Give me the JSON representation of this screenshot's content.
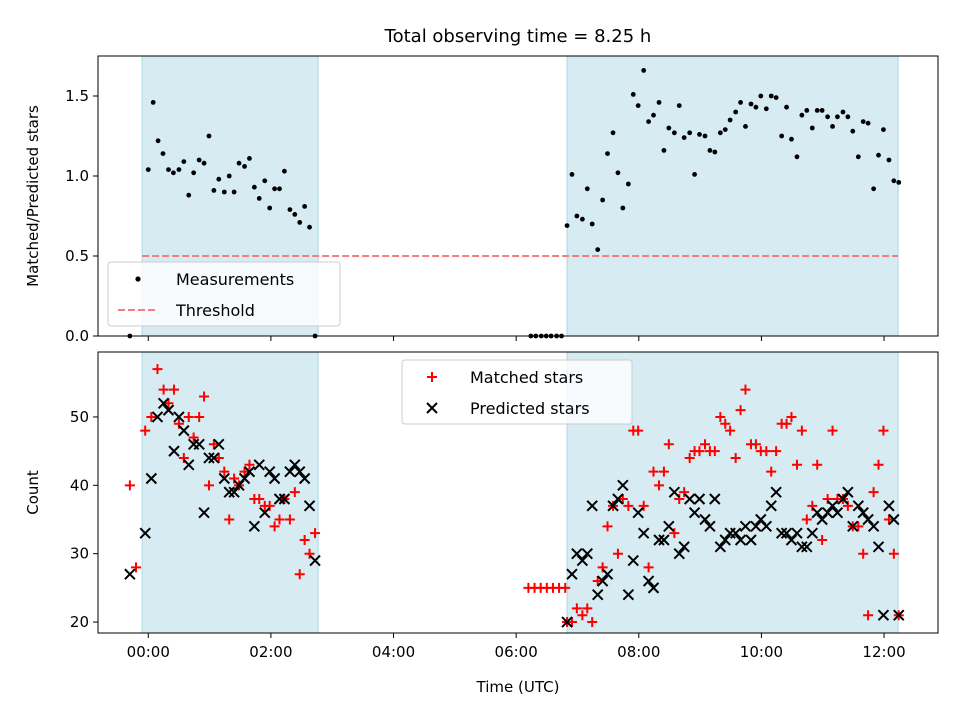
{
  "chart_data": [
    {
      "type": "scatter",
      "title": "Total observing time = 8.25 h",
      "xlabel": "",
      "ylabel": "Matched/Predicted stars",
      "xlim": [
        -0.82,
        12.88
      ],
      "ylim": [
        0,
        1.75
      ],
      "yticks": [
        0.0,
        0.5,
        1.0,
        1.5
      ],
      "ytick_labels": [
        "0.0",
        "0.5",
        "1.0",
        "1.5"
      ],
      "xticks": [
        0,
        2,
        4,
        6,
        8,
        10,
        12
      ],
      "shaded_intervals": [
        [
          -0.1,
          2.77
        ],
        [
          6.83,
          12.23
        ]
      ],
      "legend": {
        "placement": "lower-left",
        "entries": [
          "Measurements",
          "Threshold"
        ]
      },
      "threshold": {
        "name": "Threshold",
        "value": 0.5,
        "x_range": [
          -0.1,
          12.23
        ],
        "color": "#f08080"
      },
      "series": [
        {
          "name": "Measurements",
          "color": "#000000",
          "x": [
            -0.3,
            0.0,
            0.08,
            0.16,
            0.24,
            0.33,
            0.41,
            0.5,
            0.58,
            0.66,
            0.74,
            0.83,
            0.91,
            0.99,
            1.07,
            1.15,
            1.24,
            1.32,
            1.4,
            1.48,
            1.57,
            1.65,
            1.73,
            1.81,
            1.9,
            1.98,
            2.06,
            2.14,
            2.22,
            2.31,
            2.39,
            2.47,
            2.55,
            2.63,
            2.72,
            6.24,
            6.32,
            6.41,
            6.49,
            6.57,
            6.66,
            6.74,
            6.83,
            6.91,
            6.99,
            7.08,
            7.16,
            7.24,
            7.33,
            7.41,
            7.49,
            7.58,
            7.66,
            7.74,
            7.83,
            7.91,
            7.99,
            8.08,
            8.16,
            8.24,
            8.33,
            8.41,
            8.49,
            8.58,
            8.66,
            8.74,
            8.83,
            8.91,
            8.99,
            9.08,
            9.16,
            9.24,
            9.33,
            9.41,
            9.49,
            9.58,
            9.66,
            9.74,
            9.83,
            9.91,
            9.99,
            10.08,
            10.16,
            10.24,
            10.33,
            10.41,
            10.49,
            10.58,
            10.66,
            10.74,
            10.83,
            10.91,
            10.99,
            11.08,
            11.16,
            11.24,
            11.33,
            11.41,
            11.49,
            11.58,
            11.66,
            11.74,
            11.83,
            11.91,
            11.99,
            12.08,
            12.16,
            12.24
          ],
          "values": [
            0.0,
            1.04,
            1.46,
            1.22,
            1.14,
            1.04,
            1.02,
            1.04,
            1.09,
            0.88,
            1.02,
            1.1,
            1.08,
            1.25,
            0.91,
            0.98,
            0.9,
            1.0,
            0.9,
            1.08,
            1.06,
            1.11,
            0.93,
            0.86,
            0.97,
            0.8,
            0.92,
            0.92,
            1.03,
            0.79,
            0.76,
            0.71,
            0.81,
            0.68,
            0.0,
            0.0,
            0.0,
            0.0,
            0.0,
            0.0,
            0.0,
            0.0,
            0.69,
            1.01,
            0.75,
            0.73,
            0.92,
            0.7,
            0.54,
            0.85,
            1.14,
            1.27,
            1.02,
            0.8,
            0.95,
            1.51,
            1.44,
            1.66,
            1.34,
            1.38,
            1.46,
            1.16,
            1.3,
            1.27,
            1.44,
            1.24,
            1.27,
            1.01,
            1.26,
            1.25,
            1.16,
            1.15,
            1.27,
            1.29,
            1.35,
            1.4,
            1.46,
            1.31,
            1.45,
            1.43,
            1.5,
            1.42,
            1.5,
            1.49,
            1.25,
            1.43,
            1.23,
            1.12,
            1.38,
            1.41,
            1.3,
            1.41,
            1.41,
            1.37,
            1.31,
            1.37,
            1.4,
            1.37,
            1.28,
            1.12,
            1.34,
            1.33,
            0.92,
            1.13,
            1.29,
            1.1,
            0.97,
            0.96
          ]
        }
      ]
    },
    {
      "type": "scatter",
      "title": "",
      "xlabel": "Time (UTC)",
      "ylabel": "Count",
      "xlim": [
        -0.82,
        12.88
      ],
      "ylim": [
        18.4,
        59.5
      ],
      "yticks": [
        20,
        30,
        40,
        50
      ],
      "xticks": [
        0,
        2,
        4,
        6,
        8,
        10,
        12
      ],
      "xtick_labels": [
        "00:00",
        "02:00",
        "04:00",
        "06:00",
        "08:00",
        "10:00",
        "12:00"
      ],
      "shaded_intervals": [
        [
          -0.1,
          2.77
        ],
        [
          6.83,
          12.23
        ]
      ],
      "legend": {
        "placement": "upper-center",
        "entries": [
          "Matched stars",
          "Predicted stars"
        ]
      },
      "series": [
        {
          "name": "Matched stars",
          "marker": "plus",
          "color": "#ff0000",
          "x": [
            -0.3,
            -0.2,
            -0.05,
            0.05,
            0.15,
            0.25,
            0.33,
            0.42,
            0.5,
            0.58,
            0.66,
            0.74,
            0.83,
            0.91,
            0.99,
            1.07,
            1.15,
            1.24,
            1.32,
            1.4,
            1.48,
            1.57,
            1.65,
            1.73,
            1.81,
            1.9,
            1.98,
            2.06,
            2.14,
            2.22,
            2.31,
            2.39,
            2.47,
            2.55,
            2.63,
            2.72,
            6.2,
            6.3,
            6.4,
            6.5,
            6.6,
            6.7,
            6.8,
            6.83,
            6.91,
            6.99,
            7.08,
            7.16,
            7.24,
            7.33,
            7.41,
            7.49,
            7.58,
            7.66,
            7.74,
            7.83,
            7.91,
            7.99,
            8.08,
            8.16,
            8.24,
            8.33,
            8.41,
            8.49,
            8.58,
            8.66,
            8.74,
            8.83,
            8.91,
            8.99,
            9.08,
            9.16,
            9.24,
            9.33,
            9.41,
            9.49,
            9.58,
            9.66,
            9.74,
            9.83,
            9.91,
            9.99,
            10.08,
            10.16,
            10.24,
            10.33,
            10.41,
            10.49,
            10.58,
            10.66,
            10.74,
            10.83,
            10.91,
            10.99,
            11.08,
            11.16,
            11.24,
            11.33,
            11.41,
            11.49,
            11.58,
            11.66,
            11.74,
            11.83,
            11.91,
            11.99,
            12.08,
            12.16,
            12.24
          ],
          "values": [
            40,
            28,
            48,
            50,
            57,
            54,
            52,
            54,
            49,
            44,
            50,
            47,
            50,
            53,
            40,
            46,
            44,
            42,
            35,
            41,
            40,
            42,
            43,
            38,
            38,
            37,
            37,
            34,
            35,
            38,
            35,
            39,
            27,
            32,
            30,
            33,
            25,
            25,
            25,
            25,
            25,
            25,
            25,
            20,
            20,
            22,
            21,
            22,
            20,
            26,
            28,
            34,
            37,
            30,
            38,
            37,
            48,
            48,
            37,
            28,
            42,
            40,
            42,
            46,
            33,
            38,
            39,
            44,
            45,
            45,
            46,
            45,
            45,
            50,
            49,
            48,
            44,
            51,
            54,
            46,
            46,
            45,
            45,
            42,
            45,
            49,
            49,
            50,
            43,
            48,
            35,
            37,
            43,
            32,
            38,
            48,
            38,
            38,
            37,
            34,
            34,
            30,
            21,
            39,
            43,
            48,
            35,
            30,
            21
          ]
        },
        {
          "name": "Predicted stars",
          "marker": "x",
          "color": "#000000",
          "x": [
            -0.3,
            -0.05,
            0.05,
            0.15,
            0.25,
            0.33,
            0.42,
            0.5,
            0.58,
            0.66,
            0.74,
            0.83,
            0.91,
            0.99,
            1.07,
            1.15,
            1.24,
            1.32,
            1.4,
            1.48,
            1.57,
            1.65,
            1.73,
            1.81,
            1.9,
            1.98,
            2.06,
            2.14,
            2.22,
            2.31,
            2.39,
            2.47,
            2.55,
            2.63,
            2.72,
            6.83,
            6.91,
            6.99,
            7.08,
            7.16,
            7.24,
            7.33,
            7.41,
            7.49,
            7.58,
            7.66,
            7.74,
            7.83,
            7.91,
            7.99,
            8.08,
            8.16,
            8.24,
            8.33,
            8.41,
            8.49,
            8.58,
            8.66,
            8.74,
            8.83,
            8.91,
            8.99,
            9.08,
            9.16,
            9.24,
            9.33,
            9.41,
            9.49,
            9.58,
            9.66,
            9.74,
            9.83,
            9.91,
            9.99,
            10.08,
            10.16,
            10.24,
            10.33,
            10.41,
            10.49,
            10.58,
            10.66,
            10.74,
            10.83,
            10.91,
            10.99,
            11.08,
            11.16,
            11.24,
            11.33,
            11.41,
            11.49,
            11.58,
            11.66,
            11.74,
            11.83,
            11.91,
            11.99,
            12.08,
            12.16,
            12.24
          ],
          "values": [
            27,
            33,
            41,
            50,
            52,
            51,
            45,
            50,
            48,
            43,
            46,
            46,
            36,
            44,
            44,
            46,
            41,
            39,
            39,
            40,
            41,
            42,
            34,
            43,
            36,
            42,
            41,
            38,
            38,
            42,
            43,
            42,
            41,
            37,
            29,
            20,
            27,
            30,
            29,
            30,
            37,
            24,
            26,
            27,
            37,
            38,
            40,
            24,
            29,
            36,
            33,
            26,
            25,
            32,
            32,
            34,
            39,
            30,
            31,
            38,
            36,
            38,
            35,
            34,
            38,
            31,
            32,
            33,
            33,
            32,
            34,
            32,
            34,
            35,
            34,
            37,
            39,
            33,
            33,
            32,
            33,
            31,
            31,
            33,
            36,
            35,
            36,
            37,
            36,
            38,
            39,
            34,
            37,
            36,
            35,
            34,
            31,
            21,
            37,
            35,
            21
          ]
        }
      ]
    }
  ]
}
